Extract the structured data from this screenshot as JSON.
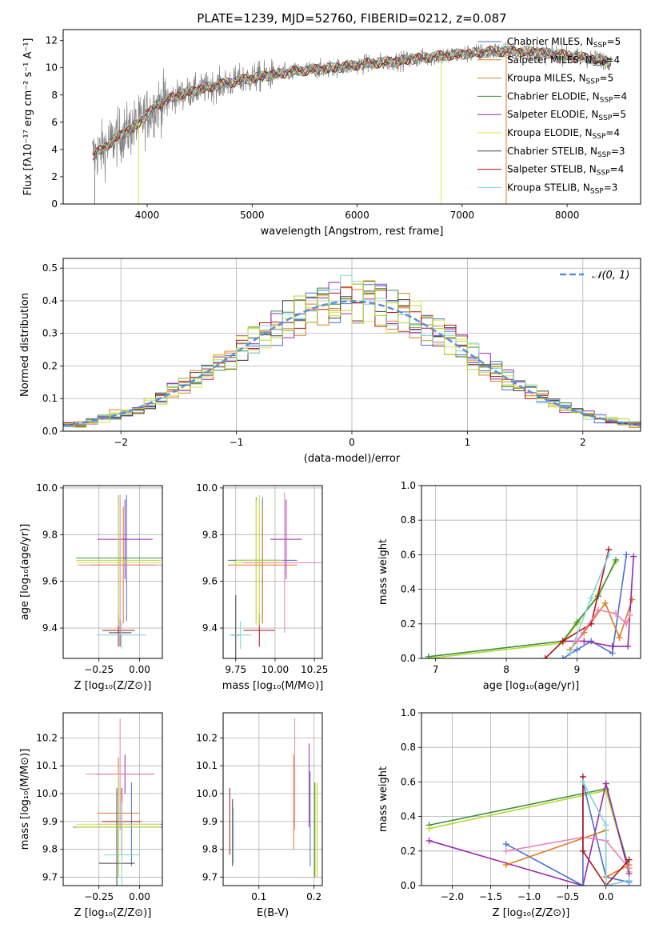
{
  "figure": {
    "title": "PLATE=1239, MJD=52760, FIBERID=0212, z=0.087"
  },
  "colors": {
    "chabrier_miles": "#4a6fd4",
    "salpeter_miles": "#e07a1f",
    "kroupa_miles": "#c98a2a",
    "chabrier_elodie": "#3e8e3e",
    "salpeter_elodie": "#9b27af",
    "kroupa_elodie": "#e2e24a",
    "chabrier_stelib": "#444444",
    "salpeter_stelib": "#b01414",
    "kroupa_stelib": "#7fd3dc",
    "pink": "#ee7fb8",
    "lime": "#b5d832",
    "normal": "#5b8fd8",
    "data": "#808080"
  },
  "chart_data": [
    {
      "id": "spectrum",
      "type": "line",
      "xlabel": "wavelength [Angstrom, rest frame]",
      "ylabel": "Flux [fλ10⁻¹⁷ erg cm⁻² s⁻¹ A⁻¹]",
      "xlim": [
        3200,
        8700
      ],
      "ylim": [
        0,
        12.8
      ],
      "xticks": [
        4000,
        5000,
        6000,
        7000,
        8000
      ],
      "yticks": [
        0,
        2,
        4,
        6,
        8,
        10,
        12
      ],
      "grid": false,
      "legend_position": "top-right",
      "continuum": {
        "x": [
          3500,
          3700,
          3900,
          4100,
          4300,
          4600,
          4900,
          5200,
          5500,
          5800,
          6100,
          6400,
          6700,
          7000,
          7300,
          7600,
          7900,
          8200,
          8400
        ],
        "y": [
          3.6,
          4.8,
          5.8,
          7.3,
          8.0,
          8.6,
          9.1,
          9.5,
          9.8,
          10.0,
          10.3,
          10.5,
          10.8,
          11.0,
          11.2,
          11.2,
          11.0,
          10.7,
          10.5
        ]
      },
      "series": [
        {
          "name": "Chabrier MILES, N_SSP=5",
          "label_main": "Chabrier MILES, N",
          "label_sub": "SSP",
          "label_end": "=5",
          "color_key": "chabrier_miles"
        },
        {
          "name": "Salpeter MILES, N_SSP=4",
          "label_main": "Salpeter MILES, N",
          "label_sub": "SSP",
          "label_end": "=4",
          "color_key": "salpeter_miles"
        },
        {
          "name": "Kroupa MILES, N_SSP=5",
          "label_main": "Kroupa MILES, N",
          "label_sub": "SSP",
          "label_end": "=5",
          "color_key": "kroupa_miles"
        },
        {
          "name": "Chabrier ELODIE, N_SSP=4",
          "label_main": "Chabrier ELODIE, N",
          "label_sub": "SSP",
          "label_end": "=4",
          "color_key": "chabrier_elodie"
        },
        {
          "name": "Salpeter ELODIE, N_SSP=5",
          "label_main": "Salpeter ELODIE, N",
          "label_sub": "SSP",
          "label_end": "=5",
          "color_key": "salpeter_elodie"
        },
        {
          "name": "Kroupa ELODIE, N_SSP=4",
          "label_main": "Kroupa ELODIE, N",
          "label_sub": "SSP",
          "label_end": "=4",
          "color_key": "kroupa_elodie"
        },
        {
          "name": "Chabrier STELIB, N_SSP=3",
          "label_main": "Chabrier STELIB, N",
          "label_sub": "SSP",
          "label_end": "=3",
          "color_key": "chabrier_stelib"
        },
        {
          "name": "Salpeter STELIB, N_SSP=4",
          "label_main": "Salpeter STELIB, N",
          "label_sub": "SSP",
          "label_end": "=4",
          "color_key": "salpeter_stelib"
        },
        {
          "name": "Kroupa STELIB, N_SSP=3",
          "label_main": "Kroupa STELIB, N",
          "label_sub": "SSP",
          "label_end": "=3",
          "color_key": "kroupa_stelib"
        }
      ],
      "dips": [
        {
          "x": 3500,
          "color_key": "data"
        },
        {
          "x": 3920,
          "color_key": "kroupa_elodie"
        },
        {
          "x": 6800,
          "color_key": "kroupa_elodie"
        },
        {
          "x": 7420,
          "color_key": "salpeter_miles"
        }
      ]
    },
    {
      "id": "residuals",
      "type": "histogram",
      "xlabel": "(data-model)/error",
      "ylabel": "Normed distribution",
      "xlim": [
        -2.5,
        2.5
      ],
      "ylim": [
        0,
        0.53
      ],
      "xticks": [
        -2,
        -1,
        0,
        1,
        2
      ],
      "yticks": [
        0.0,
        0.1,
        0.2,
        0.3,
        0.4,
        0.5
      ],
      "grid": true,
      "legend_position": "top-right",
      "legend_label": "𝒩(0, 1)",
      "normal_color_key": "normal",
      "bin_width": 0.1
    },
    {
      "id": "age_vs_Z",
      "type": "errorbar",
      "xlabel": "Z [log₁₀(Z/Z⊙)]",
      "ylabel": "age  [log₁₀(age/yr)]",
      "xlim": [
        -0.47,
        0.14
      ],
      "ylim": [
        9.27,
        10.01
      ],
      "xticks": [
        -0.25,
        0.0
      ],
      "yticks": [
        9.4,
        9.6,
        9.8,
        10.0
      ],
      "grid": true,
      "points": [
        {
          "x": -0.08,
          "y": 9.7,
          "xerr": 0.3,
          "yerr": 0.27,
          "color_key": "chabrier_miles"
        },
        {
          "x": -0.1,
          "y": 9.67,
          "xerr": 0.2,
          "yerr": 0.25,
          "color_key": "salpeter_miles"
        },
        {
          "x": -0.13,
          "y": 9.7,
          "xerr": 0.26,
          "yerr": 0.27,
          "color_key": "chabrier_elodie"
        },
        {
          "x": -0.09,
          "y": 9.78,
          "xerr": 0.17,
          "yerr": 0.17,
          "color_key": "salpeter_elodie"
        },
        {
          "x": -0.13,
          "y": 9.68,
          "xerr": 0.26,
          "yerr": 0.27,
          "color_key": "kroupa_elodie"
        },
        {
          "x": -0.12,
          "y": 9.38,
          "xerr": 0.07,
          "yerr": 0.06,
          "color_key": "chabrier_stelib"
        },
        {
          "x": -0.13,
          "y": 9.39,
          "xerr": 0.1,
          "yerr": 0.07,
          "color_key": "salpeter_stelib"
        },
        {
          "x": -0.11,
          "y": 9.37,
          "xerr": 0.15,
          "yerr": 0.06,
          "color_key": "kroupa_stelib"
        },
        {
          "x": -0.12,
          "y": 9.67,
          "xerr": 0.26,
          "yerr": 0.3,
          "color_key": "pink"
        },
        {
          "x": -0.13,
          "y": 9.69,
          "xerr": 0.26,
          "yerr": 0.28,
          "color_key": "lime"
        }
      ]
    },
    {
      "id": "age_vs_mass",
      "type": "errorbar",
      "xlabel": "mass [log₁₀(M/M⊙)]",
      "ylabel": "",
      "xlim": [
        9.67,
        10.3
      ],
      "ylim": [
        9.27,
        10.01
      ],
      "xticks": [
        9.75,
        10.0,
        10.25
      ],
      "yticks": [
        9.4,
        9.6,
        9.8,
        10.0
      ],
      "grid": true,
      "points": [
        {
          "x": 9.92,
          "y": 9.69,
          "xerr": 0.22,
          "yerr": 0.27,
          "color_key": "chabrier_miles"
        },
        {
          "x": 9.92,
          "y": 9.67,
          "xerr": 0.22,
          "yerr": 0.25,
          "color_key": "salpeter_miles"
        },
        {
          "x": 9.88,
          "y": 9.69,
          "xerr": 0.15,
          "yerr": 0.27,
          "color_key": "chabrier_elodie"
        },
        {
          "x": 10.07,
          "y": 9.78,
          "xerr": 0.1,
          "yerr": 0.17,
          "color_key": "salpeter_elodie"
        },
        {
          "x": 9.88,
          "y": 9.68,
          "xerr": 0.15,
          "yerr": 0.27,
          "color_key": "kroupa_elodie"
        },
        {
          "x": 9.75,
          "y": 9.37,
          "xerr": 0.03,
          "yerr": 0.17,
          "color_key": "chabrier_stelib"
        },
        {
          "x": 9.9,
          "y": 9.39,
          "xerr": 0.1,
          "yerr": 0.07,
          "color_key": "salpeter_stelib"
        },
        {
          "x": 9.78,
          "y": 9.37,
          "xerr": 0.07,
          "yerr": 0.06,
          "color_key": "kroupa_stelib"
        },
        {
          "x": 10.06,
          "y": 9.68,
          "xerr": 0.26,
          "yerr": 0.3,
          "color_key": "pink"
        },
        {
          "x": 9.9,
          "y": 9.69,
          "xerr": 0.15,
          "yerr": 0.28,
          "color_key": "lime"
        }
      ]
    },
    {
      "id": "weight_vs_age",
      "type": "line",
      "xlabel": "age  [log₁₀(age/yr)]",
      "ylabel": "mass weight",
      "xlim": [
        6.8,
        9.9
      ],
      "ylim": [
        0,
        1.0
      ],
      "xticks": [
        7,
        8,
        9
      ],
      "yticks": [
        0.0,
        0.2,
        0.4,
        0.6,
        0.8,
        1.0
      ],
      "grid": true,
      "series": [
        {
          "color_key": "lime",
          "x": [
            6.9,
            8.8,
            9.0,
            9.3,
            9.55
          ],
          "y": [
            0.0,
            0.09,
            0.2,
            0.37,
            0.56
          ]
        },
        {
          "color_key": "chabrier_elodie",
          "x": [
            6.9,
            8.8,
            9.0,
            9.3,
            9.55
          ],
          "y": [
            0.01,
            0.1,
            0.21,
            0.36,
            0.57
          ]
        },
        {
          "color_key": "chabrier_miles",
          "x": [
            8.8,
            9.0,
            9.2,
            9.5,
            9.7
          ],
          "y": [
            0.0,
            0.05,
            0.1,
            0.03,
            0.6
          ]
        },
        {
          "color_key": "salpeter_miles",
          "x": [
            8.9,
            9.1,
            9.4,
            9.6,
            9.78
          ],
          "y": [
            0.05,
            0.15,
            0.32,
            0.12,
            0.34
          ]
        },
        {
          "color_key": "salpeter_elodie",
          "x": [
            8.8,
            9.1,
            9.5,
            9.72,
            9.8
          ],
          "y": [
            0.1,
            0.1,
            0.07,
            0.07,
            0.59
          ]
        },
        {
          "color_key": "salpeter_stelib",
          "x": [
            8.55,
            8.8,
            9.2,
            9.45
          ],
          "y": [
            0.0,
            0.1,
            0.2,
            0.63
          ]
        },
        {
          "color_key": "kroupa_stelib",
          "x": [
            8.9,
            9.2,
            9.45
          ],
          "y": [
            0.03,
            0.35,
            0.6
          ]
        },
        {
          "color_key": "pink",
          "x": [
            9.0,
            9.3,
            9.55,
            9.7,
            9.75
          ],
          "y": [
            0.1,
            0.28,
            0.26,
            0.2,
            0.25
          ]
        }
      ]
    },
    {
      "id": "mass_vs_Z",
      "type": "errorbar",
      "xlabel": "Z [log₁₀(Z/Z⊙)]",
      "ylabel": "mass [log₁₀(M/M⊙)]",
      "xlim": [
        -0.47,
        0.14
      ],
      "ylim": [
        9.67,
        10.29
      ],
      "xticks": [
        -0.25,
        0.0
      ],
      "yticks": [
        9.7,
        9.8,
        9.9,
        10.0,
        10.1,
        10.2
      ],
      "grid": true,
      "points": [
        {
          "x": -0.05,
          "y": 9.89,
          "xerr": 0.21,
          "yerr": 0.15,
          "color_key": "chabrier_miles"
        },
        {
          "x": -0.13,
          "y": 9.93,
          "xerr": 0.13,
          "yerr": 0.2,
          "color_key": "salpeter_miles"
        },
        {
          "x": -0.13,
          "y": 9.88,
          "xerr": 0.28,
          "yerr": 0.18,
          "color_key": "chabrier_elodie"
        },
        {
          "x": -0.09,
          "y": 10.07,
          "xerr": 0.18,
          "yerr": 0.07,
          "color_key": "salpeter_elodie"
        },
        {
          "x": -0.13,
          "y": 9.89,
          "xerr": 0.26,
          "yerr": 0.18,
          "color_key": "kroupa_elodie"
        },
        {
          "x": -0.14,
          "y": 9.75,
          "xerr": 0.11,
          "yerr": 0.27,
          "color_key": "chabrier_stelib"
        },
        {
          "x": -0.11,
          "y": 9.9,
          "xerr": 0.12,
          "yerr": 0.12,
          "color_key": "salpeter_stelib"
        },
        {
          "x": -0.11,
          "y": 9.78,
          "xerr": 0.11,
          "yerr": 0.19,
          "color_key": "kroupa_stelib"
        },
        {
          "x": -0.12,
          "y": 10.07,
          "xerr": 0.21,
          "yerr": 0.2,
          "color_key": "pink"
        },
        {
          "x": -0.13,
          "y": 9.88,
          "xerr": 0.26,
          "yerr": 0.18,
          "color_key": "lime"
        }
      ]
    },
    {
      "id": "mass_vs_ebv",
      "type": "errorbar",
      "xlabel": "E(B-V)",
      "ylabel": "",
      "xlim": [
        0.035,
        0.215
      ],
      "ylim": [
        9.67,
        10.29
      ],
      "xticks": [
        0.1,
        0.2
      ],
      "yticks": [
        9.7,
        9.8,
        9.9,
        10.0,
        10.1,
        10.2
      ],
      "grid": true,
      "points": [
        {
          "x": 0.047,
          "y": 9.9,
          "xerr": 0,
          "yerr": 0.12,
          "color_key": "salpeter_stelib"
        },
        {
          "x": 0.052,
          "y": 9.86,
          "xerr": 0,
          "yerr": 0.12,
          "color_key": "chabrier_stelib"
        },
        {
          "x": 0.054,
          "y": 9.85,
          "xerr": 0,
          "yerr": 0.1,
          "color_key": "kroupa_stelib"
        },
        {
          "x": 0.163,
          "y": 9.97,
          "xerr": 0,
          "yerr": 0.17,
          "color_key": "salpeter_miles"
        },
        {
          "x": 0.165,
          "y": 10.07,
          "xerr": 0,
          "yerr": 0.2,
          "color_key": "pink"
        },
        {
          "x": 0.191,
          "y": 10.03,
          "xerr": 0,
          "yerr": 0.15,
          "color_key": "salpeter_elodie"
        },
        {
          "x": 0.193,
          "y": 9.91,
          "xerr": 0,
          "yerr": 0.17,
          "color_key": "chabrier_miles"
        },
        {
          "x": 0.201,
          "y": 9.87,
          "xerr": 0,
          "yerr": 0.17,
          "color_key": "chabrier_elodie"
        },
        {
          "x": 0.203,
          "y": 9.87,
          "xerr": 0,
          "yerr": 0.17,
          "color_key": "kroupa_elodie"
        },
        {
          "x": 0.206,
          "y": 9.87,
          "xerr": 0,
          "yerr": 0.17,
          "color_key": "lime"
        }
      ]
    },
    {
      "id": "weight_vs_Z",
      "type": "line",
      "xlabel": "Z [log₁₀(Z/Z⊙)]",
      "ylabel": "mass weight",
      "xlim": [
        -2.4,
        0.45
      ],
      "ylim": [
        0,
        1.0
      ],
      "xticks": [
        -2.0,
        -1.5,
        -1.0,
        -0.5,
        0.0
      ],
      "yticks": [
        0.0,
        0.2,
        0.4,
        0.6,
        0.8,
        1.0
      ],
      "grid": true,
      "series": [
        {
          "color_key": "chabrier_elodie",
          "x": [
            -2.3,
            0.0,
            0.3
          ],
          "y": [
            0.35,
            0.56,
            0.1
          ]
        },
        {
          "color_key": "lime",
          "x": [
            -2.3,
            0.0,
            0.3
          ],
          "y": [
            0.33,
            0.55,
            0.08
          ]
        },
        {
          "color_key": "salpeter_elodie",
          "x": [
            -2.3,
            -0.3,
            0.0,
            0.3
          ],
          "y": [
            0.26,
            0.0,
            0.59,
            0.07
          ]
        },
        {
          "color_key": "chabrier_miles",
          "x": [
            -1.3,
            -0.3,
            -0.3,
            0.0,
            0.3
          ],
          "y": [
            0.24,
            0.0,
            0.6,
            0.05,
            0.02
          ]
        },
        {
          "color_key": "salpeter_miles",
          "x": [
            -1.3,
            0.0,
            0.0,
            0.3
          ],
          "y": [
            0.12,
            0.32,
            0.05,
            0.12
          ]
        },
        {
          "color_key": "pink",
          "x": [
            -1.3,
            -0.3,
            0.0,
            0.3
          ],
          "y": [
            0.2,
            0.28,
            0.26,
            0.1
          ]
        },
        {
          "color_key": "salpeter_stelib",
          "x": [
            -0.3,
            -0.3,
            0.0,
            0.3
          ],
          "y": [
            0.63,
            0.2,
            0.0,
            0.15
          ]
        },
        {
          "color_key": "kroupa_stelib",
          "x": [
            -0.3,
            0.0,
            0.0,
            0.3
          ],
          "y": [
            0.6,
            0.35,
            0.0,
            0.03
          ]
        }
      ]
    }
  ]
}
